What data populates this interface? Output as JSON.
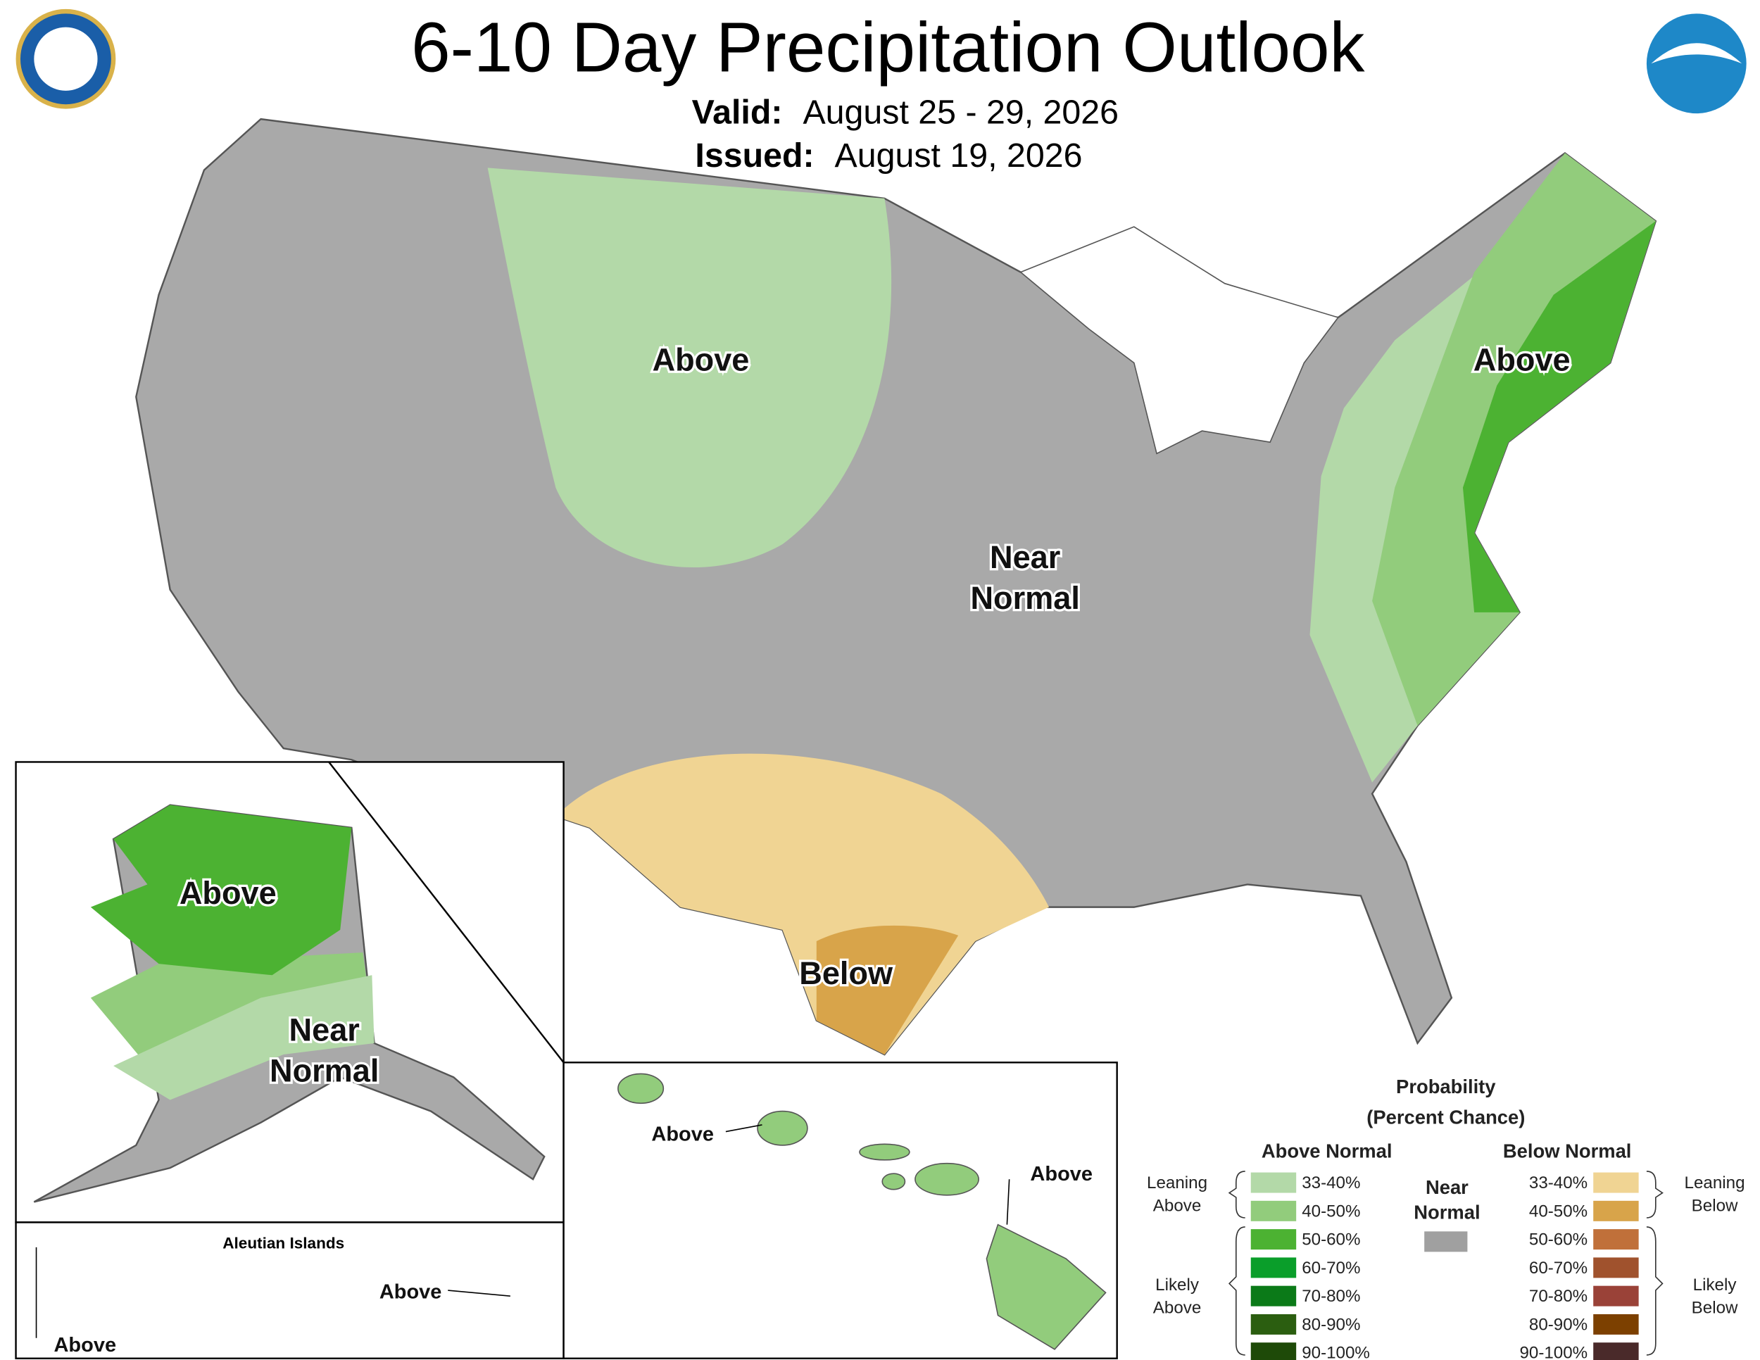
{
  "header": {
    "title": "6-10 Day Precipitation Outlook",
    "valid_label": "Valid:",
    "valid": "August 25 - 29, 2026",
    "issued_label": "Issued:",
    "issued": "August 19, 2026"
  },
  "map_labels": [
    "Above",
    "Above",
    "Near",
    "Normal",
    "Below",
    "Above",
    "Near",
    "Normal",
    "Above",
    "Above",
    "Above",
    "Above"
  ],
  "inset_title": "Aleutian Islands",
  "legend": {
    "title": "Probability",
    "subtitle": "(Percent Chance)",
    "above_header": "Above Normal",
    "below_header": "Below Normal",
    "near_normal": [
      "Near",
      "Normal"
    ],
    "near_normal_color": "#a0a0a0",
    "leaning_above": [
      "Leaning",
      "Above"
    ],
    "likely_above": [
      "Likely",
      "Above"
    ],
    "leaning_below": [
      "Leaning",
      "Below"
    ],
    "likely_below": [
      "Likely",
      "Below"
    ],
    "above": [
      {
        "range": "33-40%",
        "color": "#b3d9a8"
      },
      {
        "range": "40-50%",
        "color": "#92cc7c"
      },
      {
        "range": "50-60%",
        "color": "#4cb232"
      },
      {
        "range": "60-70%",
        "color": "#0a9e2a"
      },
      {
        "range": "70-80%",
        "color": "#0b7a18"
      },
      {
        "range": "80-90%",
        "color": "#2b5e10"
      },
      {
        "range": "90-100%",
        "color": "#1e4a08"
      }
    ],
    "below": [
      {
        "range": "33-40%",
        "color": "#f0d493"
      },
      {
        "range": "40-50%",
        "color": "#d8a44a"
      },
      {
        "range": "50-60%",
        "color": "#c0703a"
      },
      {
        "range": "60-70%",
        "color": "#a0522d"
      },
      {
        "range": "70-80%",
        "color": "#9a4238"
      },
      {
        "range": "80-90%",
        "color": "#7c4000"
      },
      {
        "range": "90-100%",
        "color": "#4a2a2a"
      }
    ]
  }
}
